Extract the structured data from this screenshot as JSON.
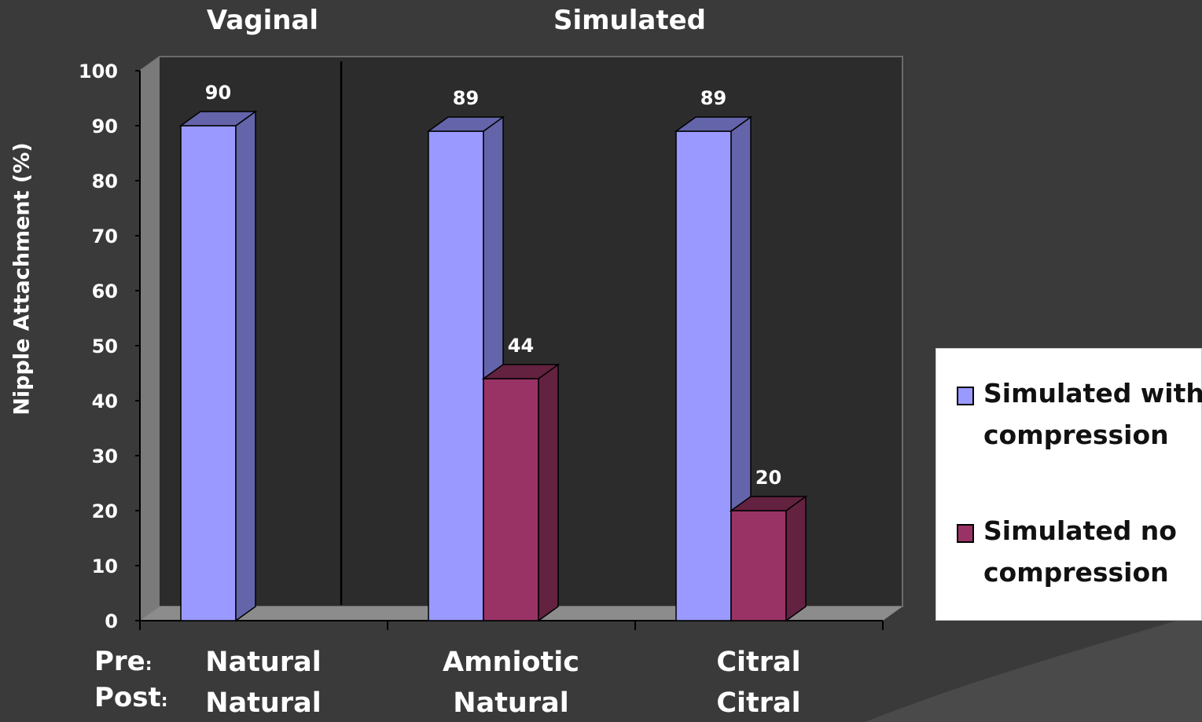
{
  "colors": {
    "background": "#3a3a3a",
    "with_compression": "#9999ff",
    "with_compression_side": "#6464aa",
    "no_compression": "#993366",
    "no_compression_side": "#63223f",
    "wall": "#2c2c2c",
    "floor": "#8c8c8c"
  },
  "headers": {
    "vaginal": "Vaginal",
    "simulated": "Simulated"
  },
  "rows": {
    "pre": "Pre",
    "post": "Post",
    "colon": ":"
  },
  "categories_pre": [
    "Natural",
    "Amniotic",
    "Citral"
  ],
  "categories_post": [
    "Natural",
    "Natural",
    "Citral"
  ],
  "chart_data": {
    "type": "bar",
    "categories": [
      "Natural / Natural",
      "Amniotic / Natural",
      "Citral / Citral"
    ],
    "series": [
      {
        "name": "Simulated with compression",
        "values": [
          90,
          89,
          89
        ]
      },
      {
        "name": "Simulated no compression",
        "values": [
          null,
          44,
          20
        ]
      }
    ],
    "data_labels": [
      [
        "90",
        "89",
        "89"
      ],
      [
        null,
        "44",
        "20"
      ]
    ],
    "ylabel": "Nipple Attachment (%)",
    "ylim": [
      0,
      100
    ],
    "yticks": [
      0,
      10,
      20,
      30,
      40,
      50,
      60,
      70,
      80,
      90,
      100
    ],
    "legend": "right",
    "grid": false,
    "style": "3d"
  }
}
